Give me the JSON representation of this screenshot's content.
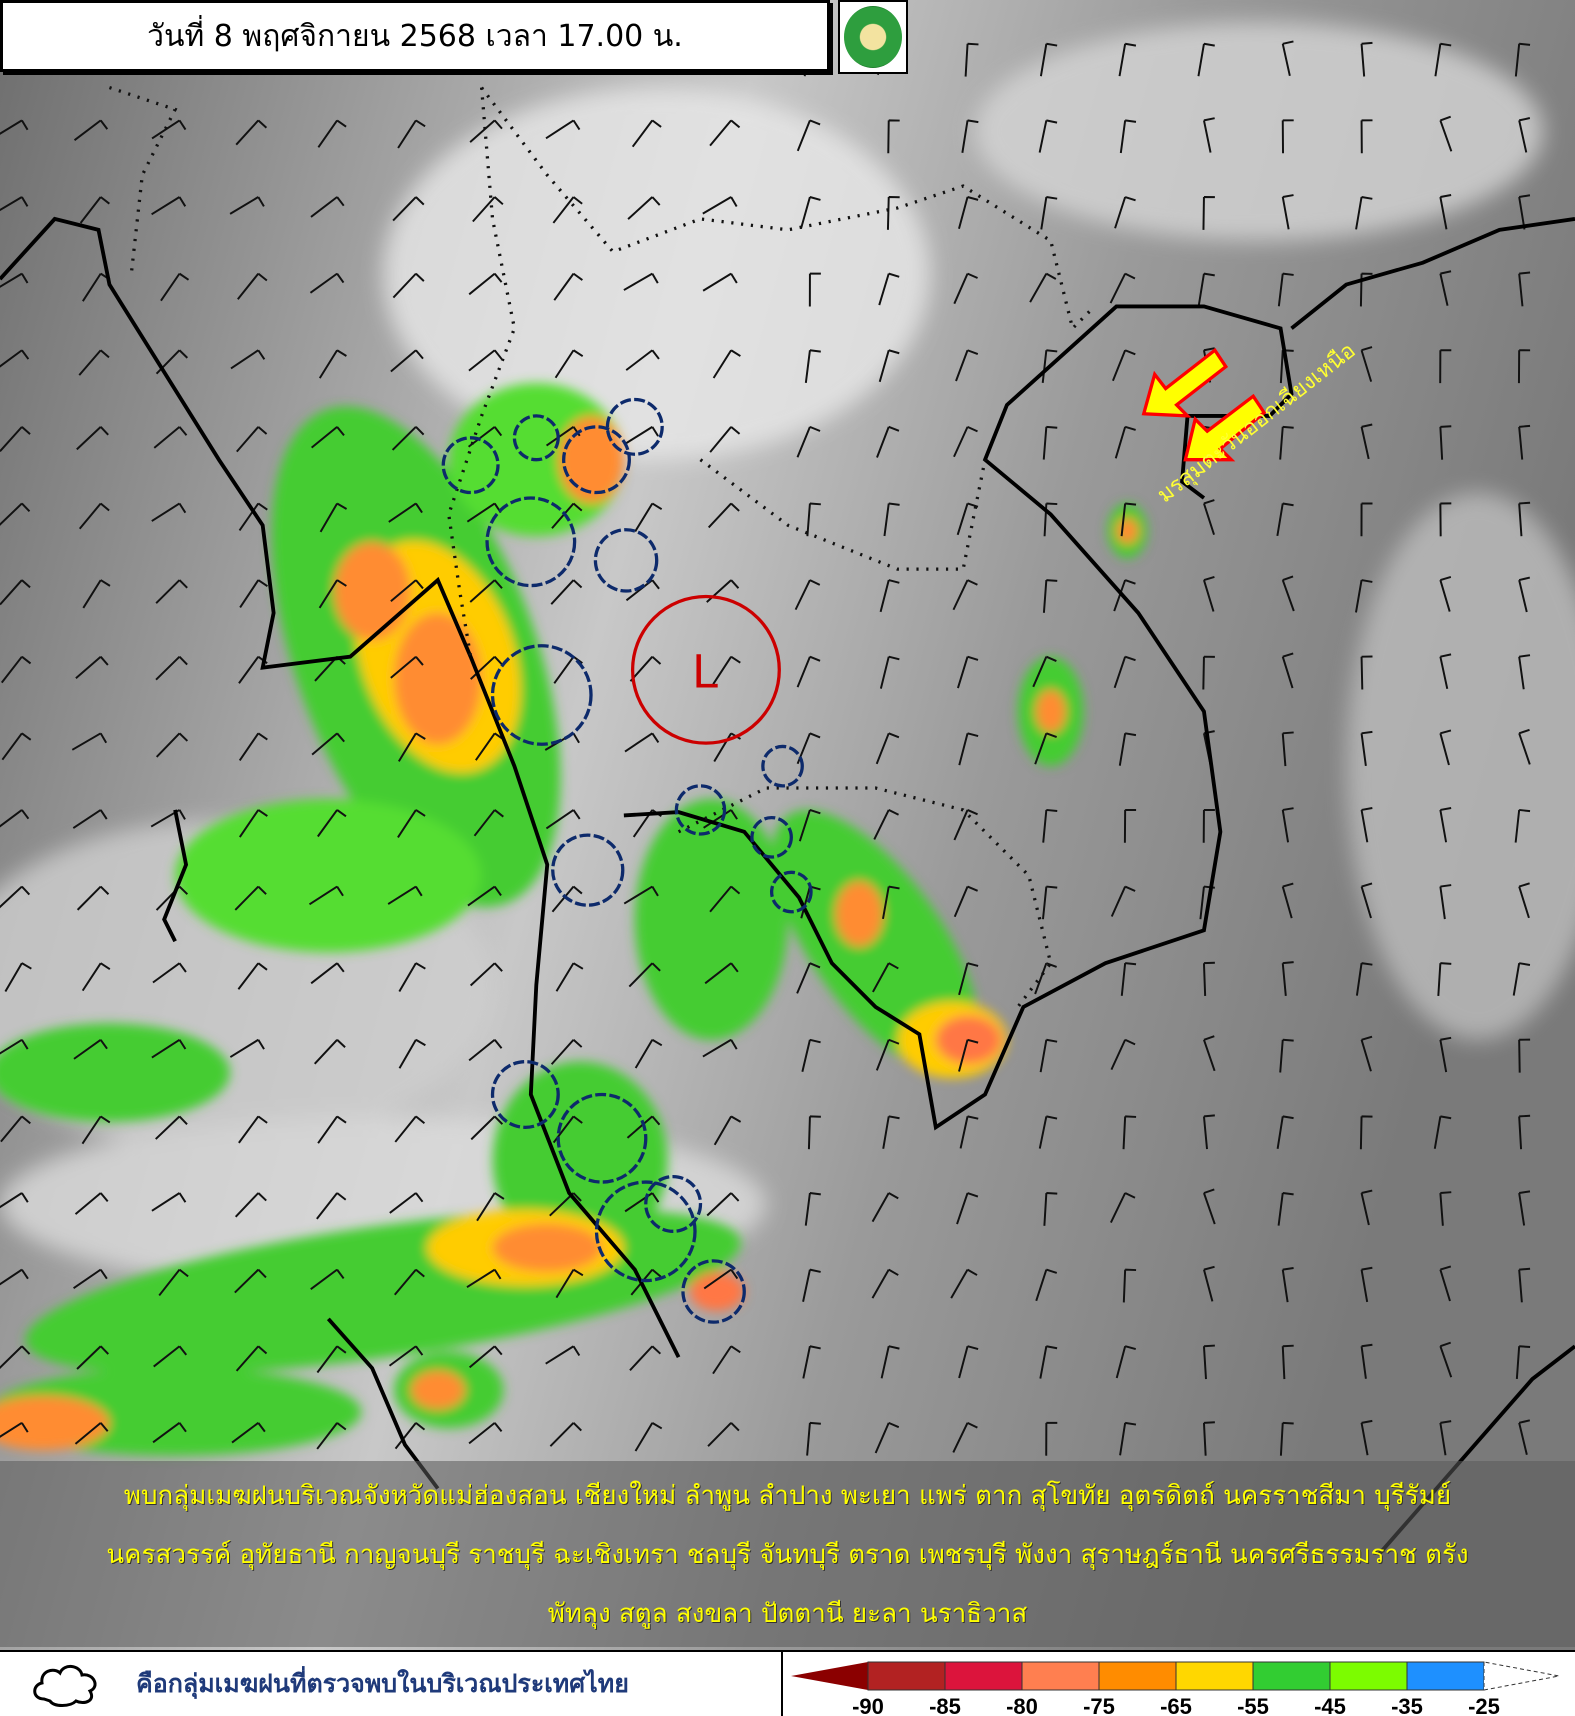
{
  "header": {
    "title": "วันที่ 8 พฤศจิกายน 2568 เวลา 17.00 น.",
    "logo": "กรมอุตุนิยมวิทยา METEOROLOGICAL DEPARTMENT"
  },
  "map": {
    "low_pressure_label": "L",
    "monsoon_label": "มรสุมตะวันออกเฉียงเหนือ",
    "arrow_color": "#ffff00",
    "arrow_outline": "#ff0000",
    "storm_outline_color": "#0d2a6b"
  },
  "summary": {
    "lines": [
      "พบกลุ่มเมฆฝนบริเวณจังหวัดแม่ฮ่องสอน เชียงใหม่ ลำพูน ลำปาง พะเยา แพร่ ตาก สุโขทัย อุตรดิตถ์ นครราชสีมา บุรีรัมย์",
      "นครสวรรค์ อุทัยธานี กาญจนบุรี ราชบุรี ฉะเชิงเทรา ชลบุรี จันทบุรี ตราด เพชรบุรี พังงา สุราษฎร์ธานี นครศรีธรรมราช ตรัง",
      "พัทลุง สตูล สงขลา ปัตตานี ยะลา นราธิวาส"
    ]
  },
  "legend": {
    "cloud_label": "คือกลุ่มเมฆฝนที่ตรวจพบในบริเวณประเทศไทย",
    "colorbar": {
      "colors": [
        "#8b0000",
        "#b22222",
        "#dc143c",
        "#ff7f50",
        "#ff8c00",
        "#ffd700",
        "#32cd32",
        "#7cfc00",
        "#1e90ff",
        "#ffffff"
      ],
      "ticks": [
        "-90",
        "-85",
        "-80",
        "-75",
        "-65",
        "-55",
        "-45",
        "-35",
        "-25"
      ]
    }
  }
}
